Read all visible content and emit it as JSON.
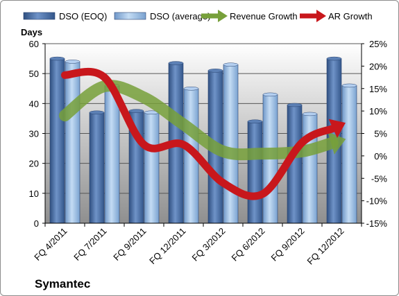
{
  "chart_data": {
    "type": "bar",
    "title": "",
    "company_label": "Symantec",
    "y_left_label": "Days",
    "y_left_lim": [
      0,
      60
    ],
    "y_left_ticks": [
      "0",
      "10",
      "20",
      "30",
      "40",
      "50",
      "60"
    ],
    "y_right_lim": [
      -15,
      25
    ],
    "y_right_ticks": [
      "-15%",
      "-10%",
      "-5%",
      "0%",
      "5%",
      "10%",
      "15%",
      "20%",
      "25%"
    ],
    "categories": [
      "FQ 4/2011",
      "FQ 7/2011",
      "FQ 9/2011",
      "FQ 12/2011",
      "FQ 3/2012",
      "FQ 6/2012",
      "FQ 9/2012",
      "FQ 12/2012"
    ],
    "bar_series": [
      {
        "name": "DSO (EOQ)",
        "color": "#4a6fa5",
        "values": [
          55,
          37,
          37.5,
          53.5,
          51,
          34,
          39.5,
          55
        ]
      },
      {
        "name": "DSO (average)",
        "color": "#94b8df",
        "values": [
          54,
          46,
          37,
          45,
          53,
          43,
          36.5,
          46
        ]
      }
    ],
    "line_series": [
      {
        "name": "Revenue Growth",
        "color": "#77a03a",
        "axis": "right",
        "values": [
          9,
          15.5,
          13,
          7,
          1,
          0.5,
          1,
          3.5
        ]
      },
      {
        "name": "AR Growth",
        "color": "#c8171c",
        "axis": "right",
        "values": [
          18,
          17.5,
          2.5,
          2.5,
          -6,
          -8.5,
          3,
          7
        ]
      }
    ],
    "legend_position": "top",
    "grid": true,
    "plot_background": [
      "#ffffff",
      "#8f8f8f"
    ]
  }
}
